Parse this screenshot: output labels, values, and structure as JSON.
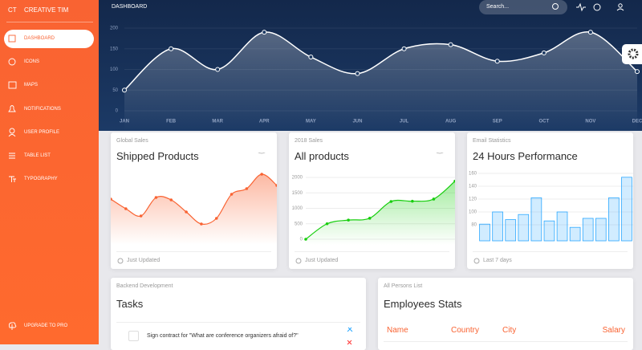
{
  "sidebar": {
    "logo": "CT",
    "brand": "CREATIVE TIM",
    "nav": [
      "DASHBOARD",
      "ICONS",
      "MAPS",
      "NOTIFICATIONS",
      "USER PROFILE",
      "TABLE LIST",
      "TYPOGRAPHY"
    ],
    "upgrade": "UPGRADE TO PRO"
  },
  "header": {
    "title": "DASHBOARD",
    "search": "Search..."
  },
  "chart_data": [
    {
      "type": "line",
      "color": "#ffffff",
      "categories": [
        "JAN",
        "FEB",
        "MAR",
        "APR",
        "MAY",
        "JUN",
        "JUL",
        "AUG",
        "SEP",
        "OCT",
        "NOV",
        "DEC"
      ],
      "values": [
        50,
        150,
        100,
        190,
        130,
        90,
        150,
        160,
        120,
        140,
        190,
        95
      ],
      "ylim": [
        0,
        200
      ],
      "yticks": [
        0,
        50,
        100,
        150,
        200
      ],
      "grid": true
    },
    {
      "type": "line",
      "color": "#f96332",
      "subtitle": "Global Sales",
      "title": "Shipped Products",
      "note": "Just Updated",
      "values": [
        42,
        30,
        21,
        44,
        41,
        26,
        11,
        18,
        48,
        55,
        73,
        59
      ],
      "ylim": [
        0,
        100
      ],
      "grid": false
    },
    {
      "type": "line",
      "color": "#18ce0f",
      "subtitle": "2018 Sales",
      "title": "All products",
      "note": "Just Updated",
      "values": [
        0,
        500,
        620,
        680,
        1220,
        1230,
        1300,
        1880
      ],
      "ylim": [
        0,
        2000
      ],
      "yticks": [
        0,
        500,
        1000,
        1500,
        2000
      ],
      "grid": true
    },
    {
      "type": "bar",
      "color": "#2ca8ff",
      "subtitle": "Email Statistics",
      "title": "24 Hours Performance",
      "note": "Last 7 days",
      "values": [
        81,
        100,
        88,
        96,
        122,
        86,
        100,
        76,
        90,
        90,
        122,
        154
      ],
      "ylim": [
        60,
        160
      ],
      "yticks": [
        80,
        100,
        120,
        140,
        160
      ],
      "grid": true
    }
  ],
  "tasks": {
    "category": "Backend Development",
    "title": "Tasks",
    "items": [
      "Sign contract for \"What are conference organizers afraid of?\""
    ]
  },
  "employees": {
    "category": "All Persons List",
    "title": "Employees Stats",
    "columns": [
      "Name",
      "Country",
      "City",
      "Salary"
    ]
  }
}
